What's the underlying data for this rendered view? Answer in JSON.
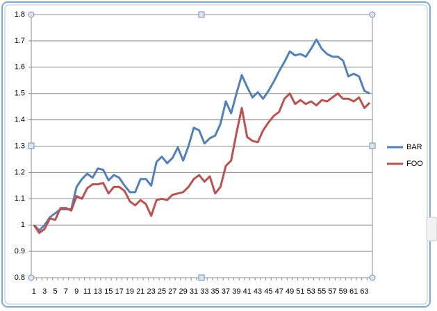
{
  "chart_data": {
    "type": "line",
    "categories": [
      1,
      null,
      3,
      null,
      5,
      null,
      7,
      null,
      9,
      null,
      11,
      null,
      13,
      null,
      15,
      null,
      17,
      null,
      19,
      null,
      21,
      null,
      23,
      null,
      25,
      null,
      27,
      null,
      29,
      null,
      31,
      null,
      33,
      null,
      35,
      null,
      37,
      null,
      39,
      null,
      41,
      null,
      43,
      null,
      45,
      null,
      47,
      null,
      49,
      null,
      51,
      null,
      53,
      null,
      55,
      null,
      57,
      null,
      59,
      null,
      61,
      null,
      63,
      null
    ],
    "series": [
      {
        "name": "BAR",
        "color": "#4f81bd",
        "values": [
          1.0,
          0.98,
          1.0,
          1.03,
          1.045,
          1.06,
          1.06,
          1.06,
          1.145,
          1.175,
          1.195,
          1.18,
          1.215,
          1.21,
          1.17,
          1.19,
          1.18,
          1.15,
          1.125,
          1.125,
          1.175,
          1.175,
          1.15,
          1.24,
          1.26,
          1.235,
          1.255,
          1.295,
          1.245,
          1.3,
          1.37,
          1.36,
          1.31,
          1.33,
          1.34,
          1.385,
          1.47,
          1.425,
          1.5,
          1.57,
          1.525,
          1.485,
          1.505,
          1.48,
          1.51,
          1.545,
          1.585,
          1.62,
          1.66,
          1.645,
          1.65,
          1.64,
          1.67,
          1.705,
          1.67,
          1.65,
          1.64,
          1.64,
          1.625,
          1.565,
          1.575,
          1.565,
          1.51,
          1.5
        ]
      },
      {
        "name": "FOO",
        "color": "#c0504d",
        "values": [
          1.0,
          0.97,
          0.985,
          1.025,
          1.02,
          1.065,
          1.065,
          1.055,
          1.11,
          1.1,
          1.14,
          1.155,
          1.155,
          1.16,
          1.12,
          1.145,
          1.145,
          1.13,
          1.09,
          1.075,
          1.095,
          1.08,
          1.035,
          1.095,
          1.1,
          1.095,
          1.115,
          1.12,
          1.125,
          1.145,
          1.175,
          1.19,
          1.165,
          1.185,
          1.12,
          1.145,
          1.225,
          1.245,
          1.35,
          1.445,
          1.335,
          1.32,
          1.315,
          1.36,
          1.39,
          1.415,
          1.43,
          1.48,
          1.5,
          1.46,
          1.475,
          1.46,
          1.47,
          1.455,
          1.475,
          1.47,
          1.485,
          1.5,
          1.48,
          1.48,
          1.47,
          1.485,
          1.445,
          1.465
        ]
      }
    ],
    "ylim": [
      0.8,
      1.8
    ],
    "yticks": [
      0.8,
      0.9,
      1,
      1.1,
      1.2,
      1.3,
      1.4,
      1.5,
      1.6,
      1.7,
      1.8
    ],
    "grid": true,
    "legend": "right"
  }
}
